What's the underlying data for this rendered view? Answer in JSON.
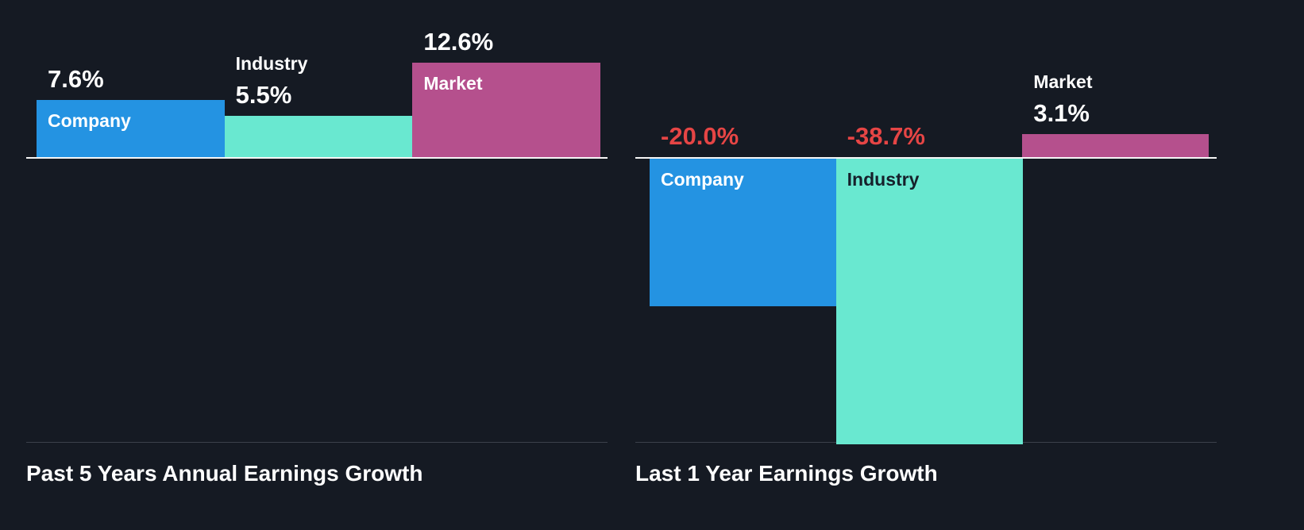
{
  "colors": {
    "background": "#151a23",
    "baseline": "#f5f5f5",
    "divider": "#3c414b",
    "company_bar": "#2493e2",
    "industry_bar": "#69e8d0",
    "market_bar": "#b5508d",
    "negative_value": "#e64545",
    "positive_value": "#ffffff",
    "dark_label_on_teal": "#16202b"
  },
  "chart_data": [
    {
      "type": "bar",
      "title": "Past 5 Years Annual Earnings Growth",
      "categories": [
        "Company",
        "Industry",
        "Market"
      ],
      "values": [
        7.6,
        5.5,
        12.6
      ],
      "value_labels": [
        "7.6%",
        "5.5%",
        "12.6%"
      ],
      "unit": "%",
      "colors": [
        "#2493e2",
        "#69e8d0",
        "#b5508d"
      ],
      "inside_label_colors": [
        "#ffffff",
        "#16202b",
        "#ffffff"
      ],
      "axis": "zero baseline at top, bars grow up, no gridlines, no legend"
    },
    {
      "type": "bar",
      "title": "Last 1 Year Earnings Growth",
      "categories": [
        "Company",
        "Industry",
        "Market"
      ],
      "values": [
        -20.0,
        -38.7,
        3.1
      ],
      "value_labels": [
        "-20.0%",
        "-38.7%",
        "3.1%"
      ],
      "unit": "%",
      "colors": [
        "#2493e2",
        "#69e8d0",
        "#b5508d"
      ],
      "inside_label_colors": [
        "#ffffff",
        "#16202b",
        "#ffffff"
      ],
      "axis": "zero baseline at top, negative bars grow down, no gridlines, no legend"
    }
  ]
}
